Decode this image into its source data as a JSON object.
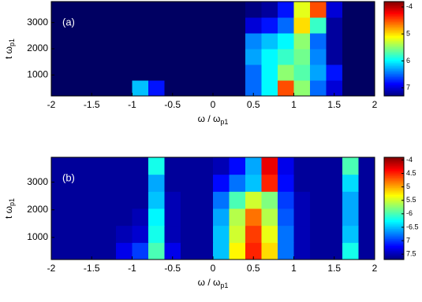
{
  "chart_data": [
    {
      "type": "heatmap",
      "annotation": "(a)",
      "x_label": "ω / ω",
      "x_label_sub": "p1",
      "y_label": "t ω",
      "y_label_sub": "p1",
      "xlim": [
        -2,
        2
      ],
      "xticks": [
        -2,
        -1.5,
        -1,
        -0.5,
        0,
        0.5,
        1,
        1.5,
        2
      ],
      "ylim": [
        200,
        3800
      ],
      "yticks": [
        1000,
        2000,
        3000
      ],
      "zlim": [
        -7.3,
        -3.8
      ],
      "colorbar_ticks": [
        -4,
        {
          "value": -5,
          "label": "5"
        },
        {
          "value": -6,
          "label": "6"
        },
        {
          "value": -7,
          "label": "7"
        }
      ],
      "z": [
        [
          -7.4,
          -7.4,
          -7.4,
          -7.4,
          -7.4,
          -6.2,
          -6.8,
          -7.4,
          -7.4,
          -7.4,
          -7.4,
          -7.4,
          -6.5,
          -6,
          -4.5,
          -5.5,
          -6.5,
          -7,
          -7.4,
          -7.4
        ],
        [
          -7.4,
          -7.4,
          -7.4,
          -7.4,
          -7.4,
          -7.4,
          -7.4,
          -7.4,
          -7.4,
          -7.4,
          -7.4,
          -7.4,
          -6.5,
          -6,
          -5.5,
          -5.7,
          -6.3,
          -6.8,
          -7.4,
          -7.4
        ],
        [
          -7.4,
          -7.4,
          -7.4,
          -7.4,
          -7.4,
          -7.4,
          -7.4,
          -7.4,
          -7.4,
          -7.4,
          -7.4,
          -7.4,
          -6.3,
          -6,
          -5.8,
          -5.6,
          -6.4,
          -7.2,
          -7.4,
          -7.4
        ],
        [
          -7.4,
          -7.4,
          -7.4,
          -7.4,
          -7.4,
          -7.4,
          -7.4,
          -7.4,
          -7.4,
          -7.4,
          -7.4,
          -7.4,
          -6.4,
          -6.2,
          -6,
          -5.5,
          -6.5,
          -7.2,
          -7.4,
          -7.4
        ],
        [
          -7.4,
          -7.4,
          -7.4,
          -7.4,
          -7.4,
          -7.4,
          -7.4,
          -7.4,
          -7.4,
          -7.4,
          -7.4,
          -7.4,
          -7,
          -6.8,
          -6.5,
          -5,
          -5.8,
          -7.2,
          -7.4,
          -7.4
        ],
        [
          -7.4,
          -7.4,
          -7.4,
          -7.4,
          -7.4,
          -7.4,
          -7.4,
          -7.4,
          -7.4,
          -7.4,
          -7.4,
          -7.4,
          -7.3,
          -7.2,
          -6.8,
          -5.2,
          -4.5,
          -7,
          -7.4,
          -7.4
        ]
      ]
    },
    {
      "type": "heatmap",
      "annotation": "(b)",
      "x_label": "ω / ω",
      "x_label_sub": "p1",
      "y_label": "t ω",
      "y_label_sub": "p1",
      "xlim": [
        -2,
        2
      ],
      "xticks": [
        -2,
        -1.5,
        -1,
        -0.5,
        0,
        0.5,
        1,
        1.5,
        2
      ],
      "ylim": [
        200,
        3900
      ],
      "yticks": [
        1000,
        2000,
        3000
      ],
      "zlim": [
        -7.7,
        -3.9
      ],
      "colorbar_ticks": [
        -4,
        {
          "value": -4.5,
          "label": "4.5"
        },
        {
          "value": -5,
          "label": "5"
        },
        {
          "value": -5.5,
          "label": "5.5"
        },
        -6,
        -6.5,
        {
          "value": -7,
          "label": "7"
        },
        {
          "value": -7.5,
          "label": "7.5"
        }
      ],
      "z": [
        [
          -7.6,
          -7.6,
          -7.6,
          -7.6,
          -7.3,
          -7,
          -6,
          -7.3,
          -7.6,
          -7.6,
          -6.5,
          -5.3,
          -4.5,
          -5.2,
          -6.8,
          -7.5,
          -7.6,
          -7.6,
          -6.2,
          -7.6
        ],
        [
          -7.6,
          -7.6,
          -7.6,
          -7.6,
          -7.5,
          -7.4,
          -6.2,
          -7.5,
          -7.6,
          -7.6,
          -6.5,
          -5.5,
          -4.6,
          -5.4,
          -6.8,
          -7.5,
          -7.6,
          -7.6,
          -6.5,
          -7.6
        ],
        [
          -7.6,
          -7.6,
          -7.6,
          -7.6,
          -7.6,
          -7.5,
          -6.3,
          -7.5,
          -7.6,
          -7.6,
          -6.6,
          -5.6,
          -4.8,
          -5.6,
          -6.9,
          -7.5,
          -7.6,
          -7.6,
          -6.6,
          -7.6
        ],
        [
          -7.6,
          -7.6,
          -7.6,
          -7.6,
          -7.6,
          -7.6,
          -6.5,
          -7.5,
          -7.6,
          -7.6,
          -6.8,
          -6,
          -5.5,
          -5.8,
          -7,
          -7.5,
          -7.6,
          -7.6,
          -6.6,
          -7.6
        ],
        [
          -7.6,
          -7.6,
          -7.6,
          -7.6,
          -7.6,
          -7.6,
          -6.6,
          -7.6,
          -7.6,
          -7.6,
          -7.2,
          -6.8,
          -6.5,
          -4.5,
          -7.2,
          -7.6,
          -7.6,
          -7.6,
          -6.4,
          -7.6
        ],
        [
          -7.6,
          -7.6,
          -7.6,
          -7.6,
          -7.6,
          -7.6,
          -6.2,
          -7.6,
          -7.6,
          -7.6,
          -7.5,
          -7.2,
          -6.6,
          -4.3,
          -7.3,
          -7.6,
          -7.6,
          -7.6,
          -6,
          -7.6
        ]
      ]
    }
  ]
}
